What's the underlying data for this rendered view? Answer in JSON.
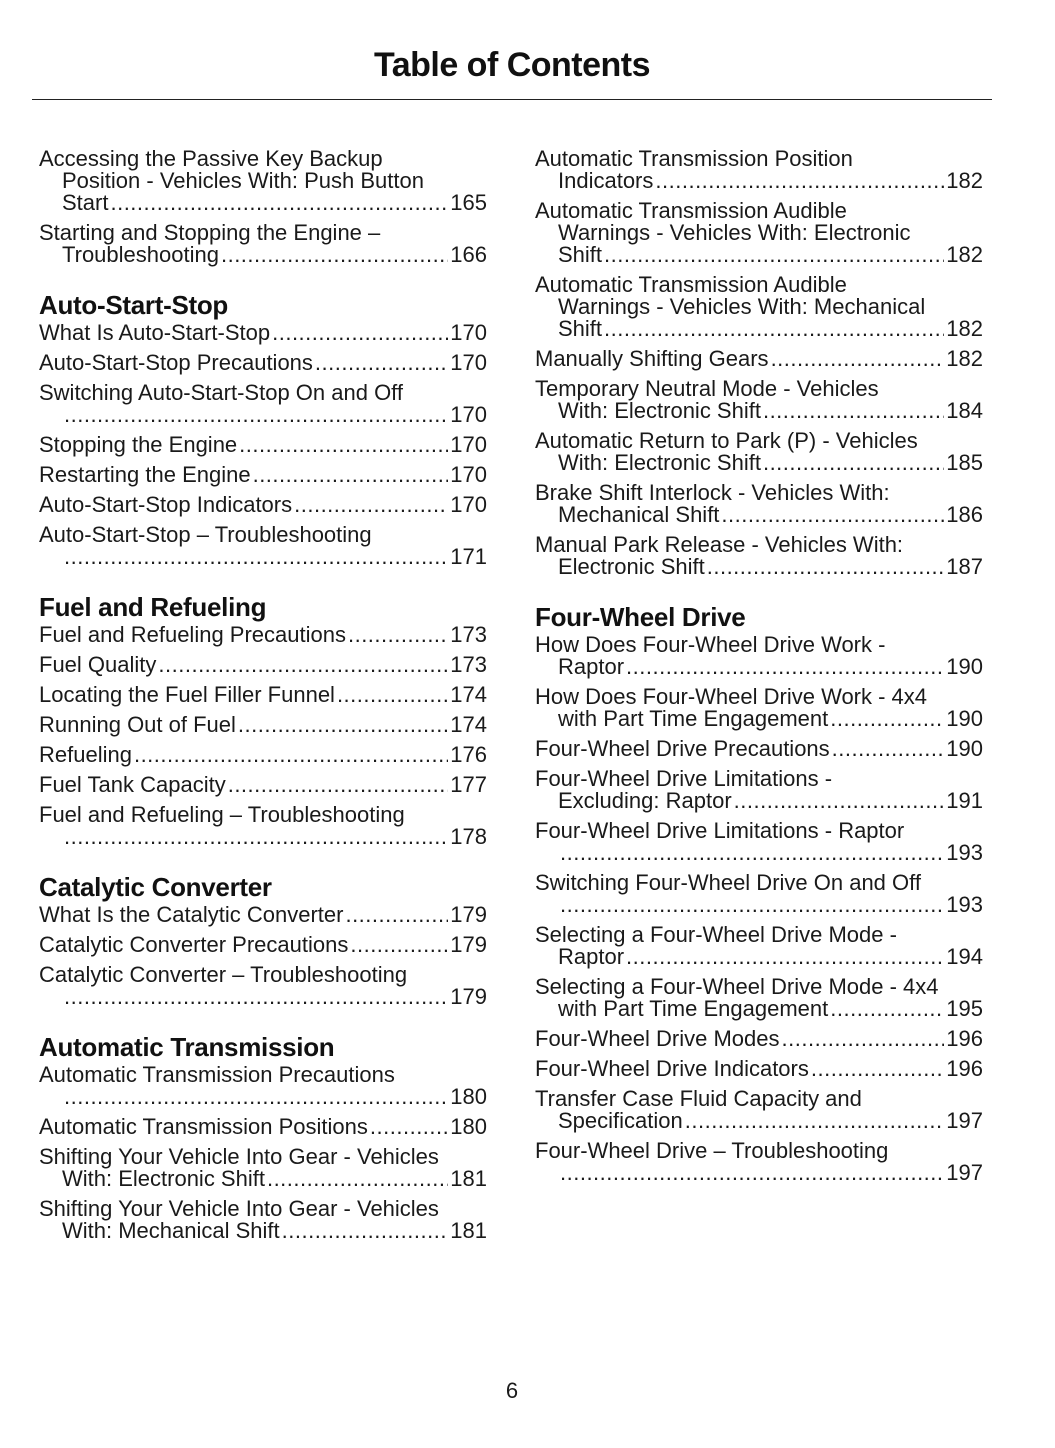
{
  "title": "Table of Contents",
  "page_number": "6",
  "columns": [
    [
      {
        "heading": "",
        "entries": [
          {
            "lines": [
              "Accessing the Passive Key Backup",
              "Position - Vehicles With: Push Button",
              "Start"
            ],
            "page": "165"
          },
          {
            "lines": [
              "Starting and Stopping the Engine –",
              "Troubleshooting"
            ],
            "page": "166"
          }
        ]
      },
      {
        "heading": "Auto-Start-Stop",
        "entries": [
          {
            "lines": [
              "What Is Auto-Start-Stop"
            ],
            "page": "170"
          },
          {
            "lines": [
              "Auto-Start-Stop Precautions"
            ],
            "page": "170"
          },
          {
            "lines": [
              "Switching Auto-Start-Stop On and Off"
            ],
            "page": "170",
            "leader_own_line": true
          },
          {
            "lines": [
              "Stopping the Engine"
            ],
            "page": "170"
          },
          {
            "lines": [
              "Restarting the Engine"
            ],
            "page": "170"
          },
          {
            "lines": [
              "Auto-Start-Stop Indicators"
            ],
            "page": "170"
          },
          {
            "lines": [
              "Auto-Start-Stop – Troubleshooting"
            ],
            "page": "171",
            "leader_own_line": true
          }
        ]
      },
      {
        "heading": "Fuel and Refueling",
        "entries": [
          {
            "lines": [
              "Fuel and Refueling Precautions"
            ],
            "page": "173"
          },
          {
            "lines": [
              "Fuel Quality"
            ],
            "page": "173"
          },
          {
            "lines": [
              "Locating the Fuel Filler Funnel"
            ],
            "page": "174"
          },
          {
            "lines": [
              "Running Out of Fuel"
            ],
            "page": "174"
          },
          {
            "lines": [
              "Refueling"
            ],
            "page": "176"
          },
          {
            "lines": [
              "Fuel Tank Capacity"
            ],
            "page": "177"
          },
          {
            "lines": [
              "Fuel and Refueling – Troubleshooting"
            ],
            "page": "178",
            "leader_own_line": true
          }
        ]
      },
      {
        "heading": "Catalytic Converter",
        "entries": [
          {
            "lines": [
              "What Is the Catalytic Converter"
            ],
            "page": "179"
          },
          {
            "lines": [
              "Catalytic Converter Precautions"
            ],
            "page": "179"
          },
          {
            "lines": [
              "Catalytic Converter – Troubleshooting"
            ],
            "page": "179",
            "leader_own_line": true
          }
        ]
      },
      {
        "heading": "Automatic Transmission",
        "entries": [
          {
            "lines": [
              "Automatic Transmission Precautions"
            ],
            "page": "180",
            "leader_own_line": true
          },
          {
            "lines": [
              "Automatic Transmission Positions"
            ],
            "page": "180"
          },
          {
            "lines": [
              "Shifting Your Vehicle Into Gear - Vehicles",
              "With: Electronic Shift"
            ],
            "page": "181"
          },
          {
            "lines": [
              "Shifting Your Vehicle Into Gear - Vehicles",
              "With: Mechanical Shift"
            ],
            "page": "181"
          }
        ]
      }
    ],
    [
      {
        "heading": "",
        "entries": [
          {
            "lines": [
              "Automatic Transmission Position",
              "Indicators"
            ],
            "page": "182"
          },
          {
            "lines": [
              "Automatic Transmission Audible",
              "Warnings - Vehicles With: Electronic",
              "Shift"
            ],
            "page": "182"
          },
          {
            "lines": [
              "Automatic Transmission Audible",
              "Warnings - Vehicles With: Mechanical",
              "Shift"
            ],
            "page": "182"
          },
          {
            "lines": [
              "Manually Shifting Gears"
            ],
            "page": "182"
          },
          {
            "lines": [
              "Temporary Neutral Mode - Vehicles",
              "With: Electronic Shift"
            ],
            "page": "184"
          },
          {
            "lines": [
              "Automatic Return to Park (P) - Vehicles",
              "With: Electronic Shift"
            ],
            "page": "185"
          },
          {
            "lines": [
              "Brake Shift Interlock - Vehicles With:",
              "Mechanical Shift"
            ],
            "page": "186"
          },
          {
            "lines": [
              "Manual Park Release - Vehicles With:",
              "Electronic Shift"
            ],
            "page": "187"
          }
        ]
      },
      {
        "heading": "Four-Wheel Drive",
        "entries": [
          {
            "lines": [
              "How Does Four-Wheel Drive Work -",
              "Raptor"
            ],
            "page": "190"
          },
          {
            "lines": [
              "How Does Four-Wheel Drive Work - 4x4",
              "with Part Time Engagement"
            ],
            "page": "190"
          },
          {
            "lines": [
              "Four-Wheel Drive Precautions"
            ],
            "page": "190"
          },
          {
            "lines": [
              "Four-Wheel Drive Limitations -",
              "Excluding: Raptor"
            ],
            "page": "191"
          },
          {
            "lines": [
              "Four-Wheel Drive Limitations - Raptor"
            ],
            "page": "193",
            "leader_own_line": true
          },
          {
            "lines": [
              "Switching Four-Wheel Drive On and Off"
            ],
            "page": "193",
            "leader_own_line": true
          },
          {
            "lines": [
              "Selecting a Four-Wheel Drive Mode -",
              "Raptor"
            ],
            "page": "194"
          },
          {
            "lines": [
              "Selecting a Four-Wheel Drive Mode - 4x4",
              "with Part Time Engagement"
            ],
            "page": "195"
          },
          {
            "lines": [
              "Four-Wheel Drive Modes"
            ],
            "page": "196"
          },
          {
            "lines": [
              "Four-Wheel Drive Indicators"
            ],
            "page": "196"
          },
          {
            "lines": [
              "Transfer Case Fluid Capacity and",
              "Specification"
            ],
            "page": "197"
          },
          {
            "lines": [
              "Four-Wheel Drive – Troubleshooting"
            ],
            "page": "197",
            "leader_own_line": true
          }
        ]
      }
    ]
  ]
}
